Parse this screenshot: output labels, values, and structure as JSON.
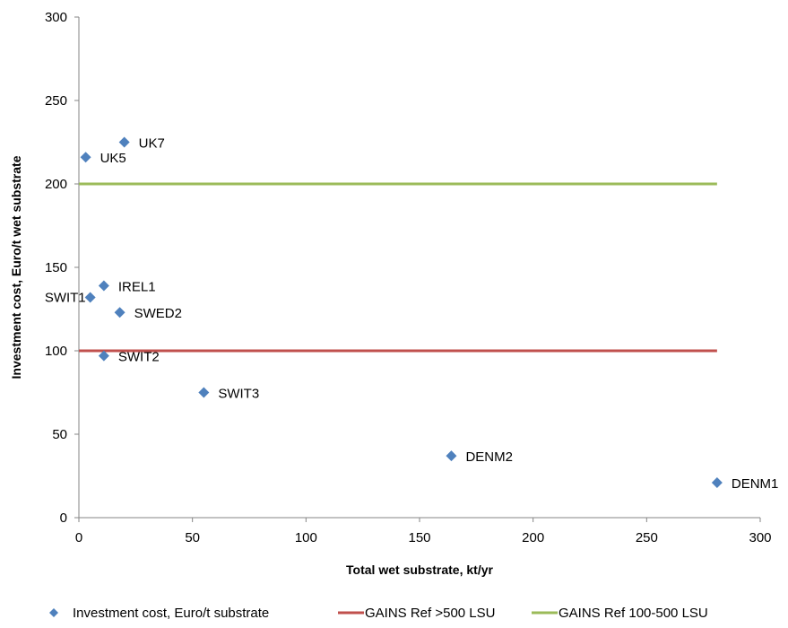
{
  "chart_data": {
    "type": "scatter",
    "title": "",
    "xlabel": "Total wet substrate, kt/yr",
    "ylabel": "Investment cost, Euro/t wet substrate",
    "xlim": [
      0,
      300
    ],
    "ylim": [
      0,
      300
    ],
    "xticks": [
      0,
      50,
      100,
      150,
      200,
      250,
      300
    ],
    "yticks": [
      0,
      50,
      100,
      150,
      200,
      250,
      300
    ],
    "grid": false,
    "legend_position": "bottom",
    "series": [
      {
        "name": "Investment cost, Euro/t substrate",
        "type": "scatter",
        "color": "#4f81bd",
        "marker": "diamond",
        "points": [
          {
            "label": "UK5",
            "x": 3,
            "y": 216
          },
          {
            "label": "UK7",
            "x": 20,
            "y": 225
          },
          {
            "label": "IREL1",
            "x": 11,
            "y": 139
          },
          {
            "label": "SWIT1",
            "x": 5,
            "y": 132
          },
          {
            "label": "SWED2",
            "x": 18,
            "y": 123
          },
          {
            "label": "SWIT2",
            "x": 11,
            "y": 97
          },
          {
            "label": "SWIT3",
            "x": 55,
            "y": 75
          },
          {
            "label": "DENM2",
            "x": 164,
            "y": 37
          },
          {
            "label": "DENM1",
            "x": 281,
            "y": 21
          }
        ]
      },
      {
        "name": "GAINS Ref >500 LSU",
        "type": "line",
        "color": "#c0504d",
        "x": [
          0,
          281
        ],
        "y": [
          100,
          100
        ]
      },
      {
        "name": "GAINS Ref 100-500 LSU",
        "type": "line",
        "color": "#9bbb59",
        "x": [
          0,
          281
        ],
        "y": [
          200,
          200
        ]
      }
    ]
  }
}
